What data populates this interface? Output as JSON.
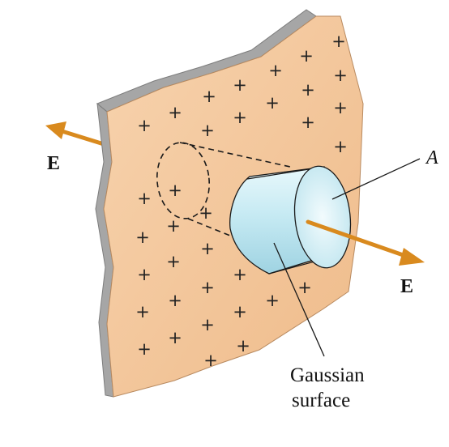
{
  "figure": {
    "subject": "Gaussian cylinder through a charged plane",
    "labels": {
      "field_left": "E",
      "field_right": "E",
      "area": "A",
      "surface_line1": "Gaussian",
      "surface_line2": "surface"
    },
    "charge_symbol": "+",
    "colors": {
      "plane_fill": "#f3c49a",
      "plane_edge": "#9a9a9a",
      "cylinder_body": "#c9ecf4",
      "cylinder_cap": "#ddf3f8",
      "field_arrow": "#d98a1e",
      "line": "#1a1a1a"
    }
  }
}
